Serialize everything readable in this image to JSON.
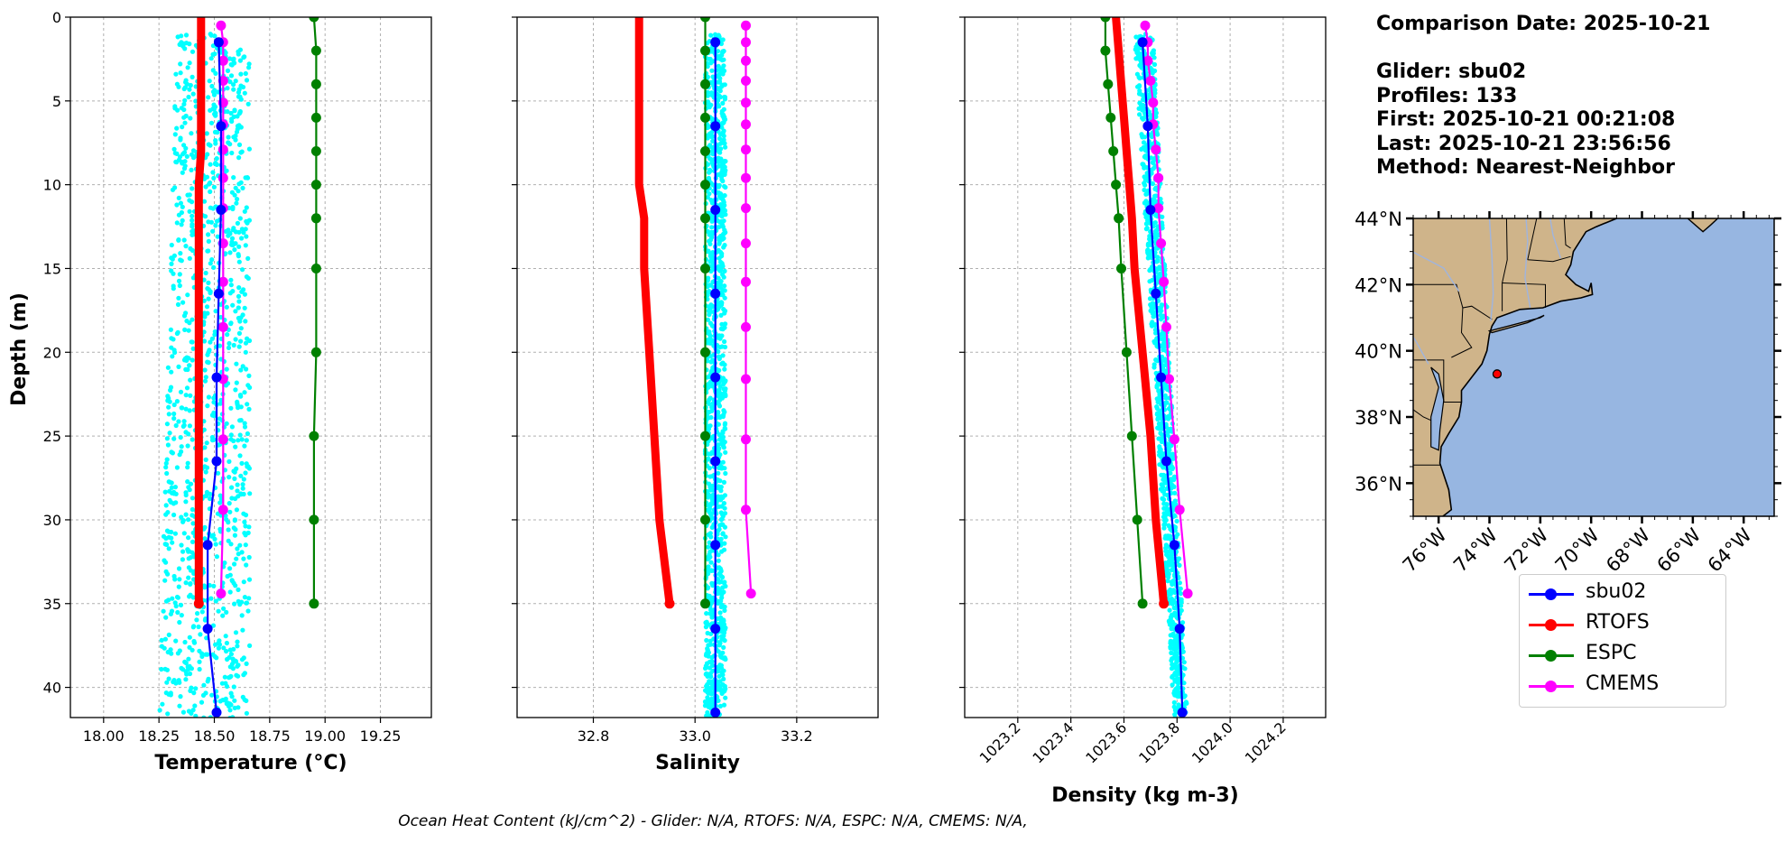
{
  "info": {
    "comparison": "Comparison Date: 2025-10-21",
    "glider": "Glider: sbu02",
    "profiles": "Profiles: 133",
    "first": "First: 2025-10-21 00:21:08",
    "last": "Last: 2025-10-21 23:56:56",
    "method": "Method: Nearest-Neighbor"
  },
  "footer": "Ocean Heat Content (kJ/cm^2) - Glider: N/A,  RTOFS: N/A,  ESPC: N/A,  CMEMS: N/A,",
  "legend": [
    {
      "name": "sbu02",
      "color": "#0000ff"
    },
    {
      "name": "RTOFS",
      "color": "#ff0000"
    },
    {
      "name": "ESPC",
      "color": "#008000"
    },
    {
      "name": "CMEMS",
      "color": "#ff00ff"
    }
  ],
  "chart_data": [
    {
      "type": "line",
      "xlabel": "Temperature (°C)",
      "ylabel": "Depth (m)",
      "xlim": [
        17.85,
        19.48
      ],
      "ylim": [
        41.8,
        0
      ],
      "xticks": [
        18.0,
        18.25,
        18.5,
        18.75,
        19.0,
        19.25
      ],
      "xtick_labels": [
        "18.00",
        "18.25",
        "18.50",
        "18.75",
        "19.00",
        "19.25"
      ],
      "yticks": [
        0,
        5,
        10,
        15,
        20,
        25,
        30,
        35,
        40
      ],
      "grid": true,
      "scatter_range": {
        "depth": [
          1,
          42
        ],
        "min": [
          18.33,
          18.25
        ],
        "max": [
          18.66,
          18.66
        ],
        "color": "#00ffff"
      },
      "series": [
        {
          "name": "sbu02",
          "color": "#0000ff",
          "depth": [
            1.5,
            6.5,
            11.5,
            16.5,
            21.5,
            26.5,
            31.5,
            36.5,
            41.5
          ],
          "values": [
            18.52,
            18.53,
            18.53,
            18.52,
            18.51,
            18.51,
            18.47,
            18.47,
            18.51
          ]
        },
        {
          "name": "RTOFS",
          "color": "#ff0000",
          "depth": [
            0,
            2,
            4,
            6,
            8,
            10,
            12,
            15,
            20,
            25,
            30,
            35
          ],
          "values": [
            18.44,
            18.44,
            18.44,
            18.44,
            18.44,
            18.43,
            18.43,
            18.43,
            18.43,
            18.43,
            18.43,
            18.43
          ]
        },
        {
          "name": "ESPC",
          "color": "#008000",
          "depth": [
            0,
            2,
            4,
            6,
            8,
            10,
            12,
            15,
            20,
            25,
            30,
            35
          ],
          "values": [
            18.95,
            18.96,
            18.96,
            18.96,
            18.96,
            18.96,
            18.96,
            18.96,
            18.96,
            18.95,
            18.95,
            18.95
          ]
        },
        {
          "name": "CMEMS",
          "color": "#ff00ff",
          "depth": [
            0.5,
            1.5,
            2.6,
            3.8,
            5.1,
            6.4,
            7.9,
            9.6,
            11.4,
            13.5,
            15.8,
            18.5,
            21.6,
            25.2,
            29.4,
            34.4
          ],
          "values": [
            18.53,
            18.54,
            18.54,
            18.54,
            18.54,
            18.54,
            18.54,
            18.54,
            18.54,
            18.54,
            18.54,
            18.54,
            18.54,
            18.54,
            18.54,
            18.53
          ]
        }
      ]
    },
    {
      "type": "line",
      "xlabel": "Salinity",
      "ylabel": "",
      "xlim": [
        32.65,
        33.36
      ],
      "ylim": [
        41.8,
        0
      ],
      "xticks": [
        32.8,
        33.0,
        33.2
      ],
      "xtick_labels": [
        "32.8",
        "33.0",
        "33.2"
      ],
      "yticks": [
        0,
        5,
        10,
        15,
        20,
        25,
        30,
        35,
        40
      ],
      "grid": true,
      "scatter_range": {
        "depth": [
          1,
          42
        ],
        "min": [
          33.02,
          33.02
        ],
        "max": [
          33.06,
          33.06
        ],
        "color": "#00ffff"
      },
      "series": [
        {
          "name": "sbu02",
          "color": "#0000ff",
          "depth": [
            1.5,
            6.5,
            11.5,
            16.5,
            21.5,
            26.5,
            31.5,
            36.5,
            41.5
          ],
          "values": [
            33.04,
            33.04,
            33.04,
            33.04,
            33.04,
            33.04,
            33.04,
            33.04,
            33.04
          ]
        },
        {
          "name": "RTOFS",
          "color": "#ff0000",
          "depth": [
            0,
            2,
            4,
            6,
            8,
            10,
            12,
            15,
            20,
            25,
            30,
            35
          ],
          "values": [
            32.89,
            32.89,
            32.89,
            32.89,
            32.89,
            32.89,
            32.9,
            32.9,
            32.91,
            32.92,
            32.93,
            32.95
          ]
        },
        {
          "name": "ESPC",
          "color": "#008000",
          "depth": [
            0,
            2,
            4,
            6,
            8,
            10,
            12,
            15,
            20,
            25,
            30,
            35
          ],
          "values": [
            33.02,
            33.02,
            33.02,
            33.02,
            33.02,
            33.02,
            33.02,
            33.02,
            33.02,
            33.02,
            33.02,
            33.02
          ]
        },
        {
          "name": "CMEMS",
          "color": "#ff00ff",
          "depth": [
            0.5,
            1.5,
            2.6,
            3.8,
            5.1,
            6.4,
            7.9,
            9.6,
            11.4,
            13.5,
            15.8,
            18.5,
            21.6,
            25.2,
            29.4,
            34.4
          ],
          "values": [
            33.1,
            33.1,
            33.1,
            33.1,
            33.1,
            33.1,
            33.1,
            33.1,
            33.1,
            33.1,
            33.1,
            33.1,
            33.1,
            33.1,
            33.1,
            33.11
          ]
        }
      ]
    },
    {
      "type": "line",
      "xlabel": "Density (kg m-3)",
      "ylabel": "",
      "xlim": [
        1023.0,
        1024.36
      ],
      "ylim": [
        41.8,
        0
      ],
      "xticks": [
        1023.2,
        1023.4,
        1023.6,
        1023.8,
        1024.0,
        1024.2
      ],
      "xtick_labels": [
        "1023.2",
        "1023.4",
        "1023.6",
        "1023.8",
        "1024.0",
        "1024.2"
      ],
      "yticks": [
        0,
        5,
        10,
        15,
        20,
        25,
        30,
        35,
        40
      ],
      "grid": true,
      "scatter_range": {
        "depth": [
          1,
          42
        ],
        "min": [
          1023.64,
          1023.79
        ],
        "max": [
          1023.71,
          1023.84
        ],
        "color": "#00ffff"
      },
      "series": [
        {
          "name": "sbu02",
          "color": "#0000ff",
          "depth": [
            1.5,
            6.5,
            11.5,
            16.5,
            21.5,
            26.5,
            31.5,
            36.5,
            41.5
          ],
          "values": [
            1023.67,
            1023.69,
            1023.7,
            1023.72,
            1023.74,
            1023.76,
            1023.79,
            1023.81,
            1023.82
          ]
        },
        {
          "name": "RTOFS",
          "color": "#ff0000",
          "depth": [
            0,
            2,
            4,
            6,
            8,
            10,
            12,
            15,
            20,
            25,
            30,
            35
          ],
          "values": [
            1023.57,
            1023.58,
            1023.59,
            1023.6,
            1023.61,
            1023.62,
            1023.63,
            1023.64,
            1023.67,
            1023.7,
            1023.72,
            1023.75
          ]
        },
        {
          "name": "ESPC",
          "color": "#008000",
          "depth": [
            0,
            2,
            4,
            6,
            8,
            10,
            12,
            15,
            20,
            25,
            30,
            35
          ],
          "values": [
            1023.53,
            1023.53,
            1023.54,
            1023.55,
            1023.56,
            1023.57,
            1023.58,
            1023.59,
            1023.61,
            1023.63,
            1023.65,
            1023.67
          ]
        },
        {
          "name": "CMEMS",
          "color": "#ff00ff",
          "depth": [
            0.5,
            1.5,
            2.6,
            3.8,
            5.1,
            6.4,
            7.9,
            9.6,
            11.4,
            13.5,
            15.8,
            18.5,
            21.6,
            25.2,
            29.4,
            34.4
          ],
          "values": [
            1023.68,
            1023.69,
            1023.69,
            1023.7,
            1023.71,
            1023.71,
            1023.72,
            1023.73,
            1023.73,
            1023.74,
            1023.75,
            1023.76,
            1023.77,
            1023.79,
            1023.81,
            1023.84
          ]
        }
      ]
    }
  ],
  "map": {
    "lat_labels": [
      "44°N",
      "42°N",
      "40°N",
      "38°N",
      "36°N"
    ],
    "lon_labels": [
      "76°W",
      "74°W",
      "72°W",
      "70°W",
      "68°W",
      "66°W",
      "64°W"
    ],
    "lats": [
      44,
      42,
      40,
      38,
      36
    ],
    "lons": [
      -76,
      -74,
      -72,
      -70,
      -68,
      -66,
      -64
    ],
    "extent": {
      "lon": [
        -77.0,
        -62.8
      ],
      "lat": [
        35.0,
        44.0
      ]
    },
    "marker": {
      "lon": -73.7,
      "lat": 39.3
    },
    "ocean_color": "#97b6e1",
    "land_color": "#cfb48a",
    "marker_color": "#ff0000"
  }
}
